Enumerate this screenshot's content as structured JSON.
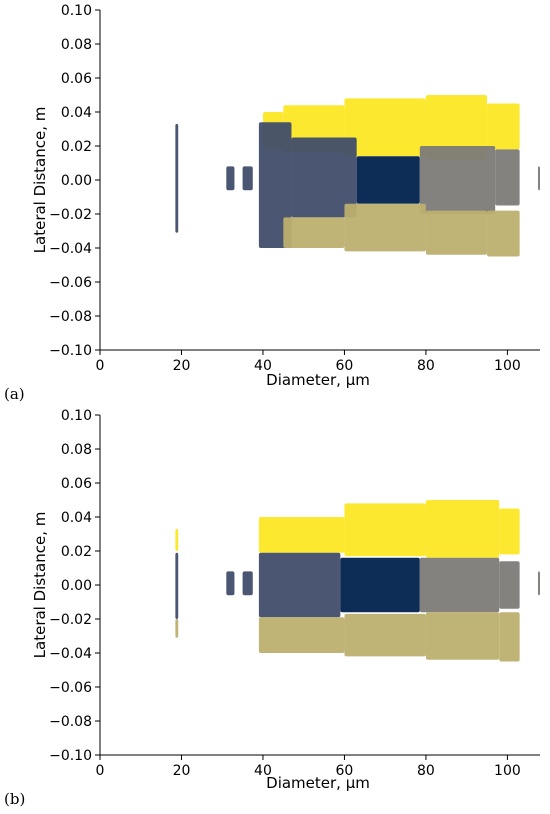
{
  "chart_data": [
    {
      "type": "scatter",
      "panel_label": "(a)",
      "xlabel": "Diameter, μm",
      "ylabel": "Lateral Distance, m",
      "xlim": [
        0,
        108
      ],
      "ylim": [
        -0.1,
        0.1
      ],
      "xticks": [
        "0",
        "20",
        "40",
        "60",
        "80",
        "100"
      ],
      "yticks": [
        "−0.10",
        "−0.08",
        "−0.06",
        "−0.04",
        "−0.02",
        "0.00",
        "0.02",
        "0.04",
        "0.06",
        "0.08",
        "0.10"
      ],
      "grid": false,
      "series": [
        {
          "color": "#fde725",
          "regions": [
            {
              "x": [
                40,
                45
              ],
              "y": [
                0.018,
                0.04
              ]
            },
            {
              "x": [
                45,
                60
              ],
              "y": [
                0.016,
                0.044
              ]
            },
            {
              "x": [
                60,
                80
              ],
              "y": [
                0.014,
                0.048
              ]
            },
            {
              "x": [
                80,
                95
              ],
              "y": [
                0.012,
                0.05
              ]
            },
            {
              "x": [
                95,
                103
              ],
              "y": [
                0.018,
                0.045
              ]
            }
          ]
        },
        {
          "color": "#414d6b",
          "regions": [
            {
              "x": [
                18.5,
                19.2
              ],
              "y": [
                -0.031,
                0.033
              ]
            },
            {
              "x": [
                31,
                33
              ],
              "y": [
                -0.006,
                0.008
              ]
            },
            {
              "x": [
                35,
                37.5
              ],
              "y": [
                -0.006,
                0.008
              ]
            },
            {
              "x": [
                39,
                47
              ],
              "y": [
                -0.04,
                0.034
              ]
            },
            {
              "x": [
                47,
                63
              ],
              "y": [
                -0.022,
                0.025
              ]
            }
          ]
        },
        {
          "color": "#00224e",
          "regions": [
            {
              "x": [
                63,
                78.5
              ],
              "y": [
                -0.014,
                0.014
              ]
            }
          ]
        },
        {
          "color": "#7c7b78",
          "regions": [
            {
              "x": [
                78.5,
                97
              ],
              "y": [
                -0.02,
                0.02
              ]
            },
            {
              "x": [
                97,
                103
              ],
              "y": [
                -0.015,
                0.018
              ]
            },
            {
              "x": [
                107.5,
                108
              ],
              "y": [
                -0.006,
                0.008
              ]
            }
          ]
        },
        {
          "color": "#bcaf6f",
          "regions": [
            {
              "x": [
                45,
                60
              ],
              "y": [
                -0.04,
                -0.022
              ]
            },
            {
              "x": [
                60,
                80
              ],
              "y": [
                -0.042,
                -0.014
              ]
            },
            {
              "x": [
                80,
                95
              ],
              "y": [
                -0.044,
                -0.018
              ]
            },
            {
              "x": [
                95,
                103
              ],
              "y": [
                -0.045,
                -0.018
              ]
            }
          ]
        }
      ]
    },
    {
      "type": "scatter",
      "panel_label": "(b)",
      "xlabel": "Diameter, μm",
      "ylabel": "Lateral Distance, m",
      "xlim": [
        0,
        108
      ],
      "ylim": [
        -0.1,
        0.1
      ],
      "xticks": [
        "0",
        "20",
        "40",
        "60",
        "80",
        "100"
      ],
      "yticks": [
        "−0.10",
        "−0.08",
        "−0.06",
        "−0.04",
        "−0.02",
        "0.00",
        "0.02",
        "0.04",
        "0.06",
        "0.08",
        "0.10"
      ],
      "grid": false,
      "series": [
        {
          "color": "#fde725",
          "regions": [
            {
              "x": [
                18.5,
                19.2
              ],
              "y": [
                0.02,
                0.033
              ]
            },
            {
              "x": [
                39,
                60
              ],
              "y": [
                0.019,
                0.04
              ]
            },
            {
              "x": [
                60,
                80
              ],
              "y": [
                0.017,
                0.048
              ]
            },
            {
              "x": [
                80,
                98
              ],
              "y": [
                0.016,
                0.05
              ]
            },
            {
              "x": [
                98,
                103
              ],
              "y": [
                0.018,
                0.045
              ]
            }
          ]
        },
        {
          "color": "#414d6b",
          "regions": [
            {
              "x": [
                18.5,
                19.2
              ],
              "y": [
                -0.02,
                0.019
              ]
            },
            {
              "x": [
                31,
                33
              ],
              "y": [
                -0.006,
                0.008
              ]
            },
            {
              "x": [
                35,
                37.5
              ],
              "y": [
                -0.006,
                0.008
              ]
            },
            {
              "x": [
                39,
                59
              ],
              "y": [
                -0.019,
                0.019
              ]
            }
          ]
        },
        {
          "color": "#00224e",
          "regions": [
            {
              "x": [
                59,
                78.5
              ],
              "y": [
                -0.016,
                0.016
              ]
            }
          ]
        },
        {
          "color": "#7c7b78",
          "regions": [
            {
              "x": [
                78.5,
                98
              ],
              "y": [
                -0.016,
                0.016
              ]
            },
            {
              "x": [
                98,
                103
              ],
              "y": [
                -0.014,
                0.014
              ]
            },
            {
              "x": [
                107.5,
                108
              ],
              "y": [
                -0.006,
                0.008
              ]
            }
          ]
        },
        {
          "color": "#bcaf6f",
          "regions": [
            {
              "x": [
                18.5,
                19.2
              ],
              "y": [
                -0.031,
                -0.02
              ]
            },
            {
              "x": [
                39,
                60
              ],
              "y": [
                -0.04,
                -0.019
              ]
            },
            {
              "x": [
                60,
                80
              ],
              "y": [
                -0.042,
                -0.017
              ]
            },
            {
              "x": [
                80,
                98
              ],
              "y": [
                -0.044,
                -0.016
              ]
            },
            {
              "x": [
                98,
                103
              ],
              "y": [
                -0.045,
                -0.016
              ]
            }
          ]
        }
      ]
    }
  ]
}
